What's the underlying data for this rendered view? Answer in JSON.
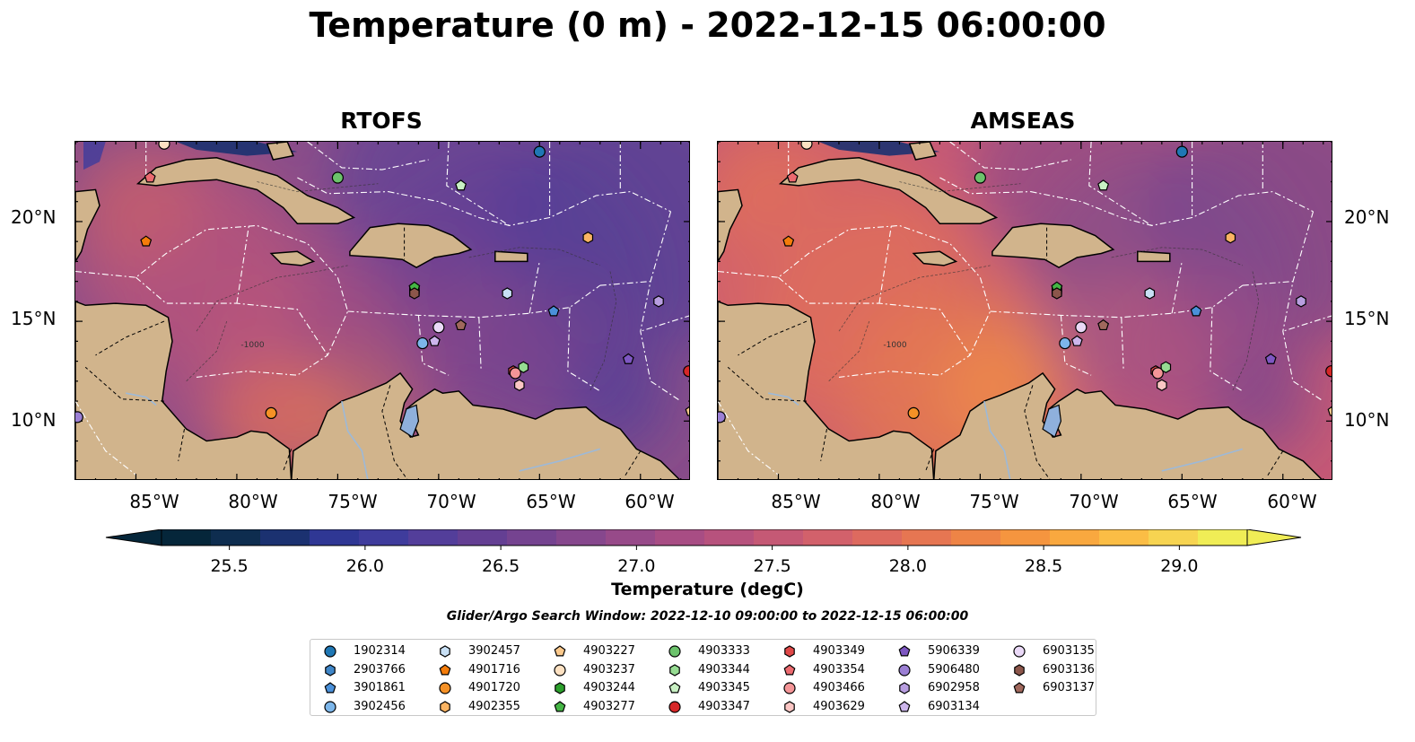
{
  "title": "Temperature (0 m) - 2022-12-15 06:00:00",
  "panels": [
    {
      "name": "RTOFS",
      "palette": "rtofs"
    },
    {
      "name": "AMSEAS",
      "palette": "amseas"
    }
  ],
  "axes": {
    "lon_labels": [
      "85°W",
      "80°W",
      "75°W",
      "70°W",
      "65°W",
      "60°W"
    ],
    "lat_labels": [
      "20°N",
      "15°N",
      "10°N"
    ],
    "lon_range": [
      -88,
      -57.5
    ],
    "lat_range": [
      7,
      24
    ]
  },
  "colorbar": {
    "label": "Temperature (degC)",
    "ticks": [
      "25.5",
      "26.0",
      "26.5",
      "27.0",
      "27.5",
      "28.0",
      "28.5",
      "29.0"
    ],
    "range": [
      25.25,
      29.25
    ],
    "extend": "both",
    "colors": [
      "#05263a",
      "#0e2d4f",
      "#1b3170",
      "#2f3794",
      "#3f3c9c",
      "#533e9a",
      "#643f93",
      "#754390",
      "#86478d",
      "#974a89",
      "#a84d84",
      "#b7527d",
      "#c55975",
      "#d2616b",
      "#dd6a5f",
      "#e67652",
      "#ee8446",
      "#f5953f",
      "#f9a83f",
      "#fbbd45",
      "#f7d451",
      "#f0ed56"
    ]
  },
  "contour_label": "-1000",
  "search_window": "Glider/Argo Search Window: 2022-12-10 09:00:00 to 2022-12-15 06:00:00",
  "legend": [
    {
      "id": "1902314",
      "marker": "circle",
      "color": "#1f77b4"
    },
    {
      "id": "2903766",
      "marker": "hexagon",
      "color": "#3f86c8"
    },
    {
      "id": "3901861",
      "marker": "pentagon",
      "color": "#4a90d9"
    },
    {
      "id": "3902456",
      "marker": "circle",
      "color": "#7cb6ea"
    },
    {
      "id": "3902457",
      "marker": "hexagon",
      "color": "#c8e0f5"
    },
    {
      "id": "4901716",
      "marker": "pentagon",
      "color": "#f47c0a"
    },
    {
      "id": "4901720",
      "marker": "circle",
      "color": "#f59126"
    },
    {
      "id": "4902355",
      "marker": "hexagon",
      "color": "#fab463"
    },
    {
      "id": "4903227",
      "marker": "pentagon",
      "color": "#fbc98c"
    },
    {
      "id": "4903237",
      "marker": "circle",
      "color": "#fde1c2"
    },
    {
      "id": "4903244",
      "marker": "hexagon",
      "color": "#2ca02c"
    },
    {
      "id": "4903277",
      "marker": "pentagon",
      "color": "#45b545"
    },
    {
      "id": "4903333",
      "marker": "circle",
      "color": "#6cc36c"
    },
    {
      "id": "4903344",
      "marker": "hexagon",
      "color": "#96dc92"
    },
    {
      "id": "4903345",
      "marker": "pentagon",
      "color": "#c9f1c4"
    },
    {
      "id": "4903347",
      "marker": "circle",
      "color": "#d62728"
    },
    {
      "id": "4903349",
      "marker": "hexagon",
      "color": "#e04848"
    },
    {
      "id": "4903354",
      "marker": "pentagon",
      "color": "#ec6a6f"
    },
    {
      "id": "4903466",
      "marker": "circle",
      "color": "#f49597"
    },
    {
      "id": "4903629",
      "marker": "hexagon",
      "color": "#fbc6c4"
    },
    {
      "id": "5906339",
      "marker": "pentagon",
      "color": "#7e57c2"
    },
    {
      "id": "5906480",
      "marker": "circle",
      "color": "#9b7fd4"
    },
    {
      "id": "6902958",
      "marker": "hexagon",
      "color": "#b89ee0"
    },
    {
      "id": "6903134",
      "marker": "pentagon",
      "color": "#cdb6ec"
    },
    {
      "id": "6903135",
      "marker": "circle",
      "color": "#ead9f7"
    },
    {
      "id": "6903136",
      "marker": "hexagon",
      "color": "#8c564b"
    },
    {
      "id": "6903137",
      "marker": "pentagon",
      "color": "#a0685c"
    }
  ],
  "platforms": [
    {
      "id": "1902314",
      "lon": -65.0,
      "lat": 23.5
    },
    {
      "id": "2903766",
      "lon": -71.2,
      "lat": 16.5
    },
    {
      "id": "3901861",
      "lon": -64.3,
      "lat": 15.5
    },
    {
      "id": "3902456",
      "lon": -70.8,
      "lat": 13.9
    },
    {
      "id": "3902457",
      "lon": -66.6,
      "lat": 16.4
    },
    {
      "id": "4901716",
      "lon": -84.5,
      "lat": 19.0
    },
    {
      "id": "4901720",
      "lon": -78.3,
      "lat": 10.4
    },
    {
      "id": "4902355",
      "lon": -62.6,
      "lat": 19.2
    },
    {
      "id": "4903227",
      "lon": -57.5,
      "lat": 10.5
    },
    {
      "id": "4903237",
      "lon": -83.6,
      "lat": 23.9
    },
    {
      "id": "4903244",
      "lon": -71.2,
      "lat": 16.6
    },
    {
      "id": "4903277",
      "lon": -71.2,
      "lat": 16.7
    },
    {
      "id": "4903333",
      "lon": -75.0,
      "lat": 22.2
    },
    {
      "id": "4903344",
      "lon": -65.8,
      "lat": 12.7
    },
    {
      "id": "4903345",
      "lon": -68.9,
      "lat": 21.8
    },
    {
      "id": "4903347",
      "lon": -57.6,
      "lat": 12.5
    },
    {
      "id": "4903349",
      "lon": -66.3,
      "lat": 12.5
    },
    {
      "id": "4903354",
      "lon": -84.3,
      "lat": 22.2
    },
    {
      "id": "4903466",
      "lon": -66.2,
      "lat": 12.4
    },
    {
      "id": "4903629",
      "lon": -66.0,
      "lat": 11.8
    },
    {
      "id": "5906339",
      "lon": -60.6,
      "lat": 13.1
    },
    {
      "id": "5906480",
      "lon": -87.9,
      "lat": 10.2
    },
    {
      "id": "6902958",
      "lon": -59.1,
      "lat": 16.0
    },
    {
      "id": "6903134",
      "lon": -70.2,
      "lat": 14.0
    },
    {
      "id": "6903135",
      "lon": -70.0,
      "lat": 14.7
    },
    {
      "id": "6903136",
      "lon": -71.2,
      "lat": 16.4
    },
    {
      "id": "6903137",
      "lon": -68.9,
      "lat": 14.8
    }
  ]
}
